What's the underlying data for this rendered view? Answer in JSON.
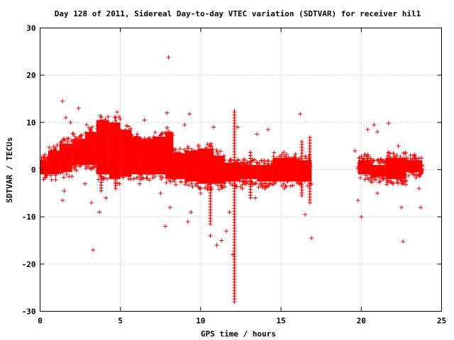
{
  "chart_data": {
    "type": "scatter",
    "title": "Day 128 of 2011, Sidereal Day-to-day VTEC variation (SDTVAR) for receiver hil1",
    "xlabel": "GPS time / hours",
    "ylabel": "SDTVAR / TECUs",
    "xlim": [
      0,
      25
    ],
    "ylim": [
      -30,
      30
    ],
    "xticks": [
      0,
      5,
      10,
      15,
      20,
      25
    ],
    "yticks": [
      -30,
      -20,
      -10,
      0,
      10,
      20,
      30
    ],
    "xtick_labels": [
      "0",
      "5",
      "10",
      "15",
      "20",
      "25"
    ],
    "ytick_labels": [
      "-30",
      "-20",
      "-10",
      "0",
      "10",
      "20",
      "30"
    ],
    "grid": true,
    "marker": "+",
    "color": "#ff0000",
    "series": [
      {
        "name": "SDTVAR",
        "bands": [
          {
            "x_start": 0.0,
            "x_end": 0.5,
            "low": -1.0,
            "high": 2.0
          },
          {
            "x_start": 0.5,
            "x_end": 1.2,
            "low": -1.0,
            "high": 4.0
          },
          {
            "x_start": 1.2,
            "x_end": 2.0,
            "low": -0.5,
            "high": 5.5
          },
          {
            "x_start": 2.0,
            "x_end": 2.8,
            "low": 1.0,
            "high": 6.5
          },
          {
            "x_start": 2.8,
            "x_end": 3.5,
            "low": 1.0,
            "high": 8.0
          },
          {
            "x_start": 3.5,
            "x_end": 4.3,
            "low": -1.0,
            "high": 10.5
          },
          {
            "x_start": 4.3,
            "x_end": 5.0,
            "low": -2.0,
            "high": 10.0
          },
          {
            "x_start": 5.0,
            "x_end": 5.7,
            "low": -1.5,
            "high": 8.5
          },
          {
            "x_start": 5.7,
            "x_end": 6.3,
            "low": -1.0,
            "high": 7.0
          },
          {
            "x_start": 6.3,
            "x_end": 7.0,
            "low": -1.0,
            "high": 6.5
          },
          {
            "x_start": 7.0,
            "x_end": 7.8,
            "low": -1.0,
            "high": 7.0
          },
          {
            "x_start": 7.8,
            "x_end": 8.3,
            "low": -2.0,
            "high": 8.0
          },
          {
            "x_start": 8.3,
            "x_end": 9.0,
            "low": -2.0,
            "high": 3.5
          },
          {
            "x_start": 9.0,
            "x_end": 9.8,
            "low": -2.5,
            "high": 4.0
          },
          {
            "x_start": 9.8,
            "x_end": 10.8,
            "low": -3.0,
            "high": 4.5
          },
          {
            "x_start": 10.8,
            "x_end": 11.5,
            "low": -3.0,
            "high": 3.0
          },
          {
            "x_start": 11.5,
            "x_end": 12.5,
            "low": -2.5,
            "high": 1.5
          },
          {
            "x_start": 12.5,
            "x_end": 13.5,
            "low": -2.0,
            "high": 1.0
          },
          {
            "x_start": 13.5,
            "x_end": 14.5,
            "low": -2.5,
            "high": 1.0
          },
          {
            "x_start": 14.5,
            "x_end": 16.0,
            "low": -2.5,
            "high": 2.5
          },
          {
            "x_start": 16.0,
            "x_end": 16.9,
            "low": -2.5,
            "high": 2.0
          },
          {
            "x_start": 19.8,
            "x_end": 20.6,
            "low": -1.0,
            "high": 2.0
          },
          {
            "x_start": 20.6,
            "x_end": 21.5,
            "low": -1.5,
            "high": 1.0
          },
          {
            "x_start": 21.5,
            "x_end": 22.8,
            "low": -2.0,
            "high": 2.5
          },
          {
            "x_start": 22.8,
            "x_end": 23.8,
            "low": -0.5,
            "high": 2.0
          }
        ],
        "spikes": [
          {
            "x": 12.1,
            "low": -28.0,
            "high": 12.8
          },
          {
            "x": 10.6,
            "low": -11.5,
            "high": 3.0
          },
          {
            "x": 16.8,
            "low": -7.0,
            "high": 7.0
          },
          {
            "x": 13.1,
            "low": -6.0,
            "high": 4.0
          },
          {
            "x": 16.3,
            "low": -5.5,
            "high": 6.0
          },
          {
            "x": 3.8,
            "low": -4.5,
            "high": 11.5
          },
          {
            "x": 4.7,
            "low": -4.0,
            "high": 11.5
          }
        ],
        "outliers": [
          [
            8.0,
            23.8
          ],
          [
            1.4,
            14.5
          ],
          [
            2.4,
            13.0
          ],
          [
            2.9,
            9.5
          ],
          [
            4.8,
            12.2
          ],
          [
            7.9,
            12.0
          ],
          [
            9.3,
            11.8
          ],
          [
            16.2,
            11.8
          ],
          [
            1.6,
            11.0
          ],
          [
            1.9,
            10.0
          ],
          [
            6.5,
            10.5
          ],
          [
            9.0,
            9.5
          ],
          [
            10.8,
            9.0
          ],
          [
            12.3,
            9.0
          ],
          [
            14.2,
            8.5
          ],
          [
            13.5,
            7.5
          ],
          [
            20.8,
            9.5
          ],
          [
            21.7,
            9.8
          ],
          [
            20.4,
            8.5
          ],
          [
            21.0,
            8.0
          ],
          [
            22.3,
            5.0
          ],
          [
            19.6,
            4.0
          ],
          [
            1.5,
            -4.5
          ],
          [
            1.4,
            -6.5
          ],
          [
            2.8,
            -3.0
          ],
          [
            3.2,
            -7.0
          ],
          [
            3.7,
            -9.0
          ],
          [
            3.3,
            -17.0
          ],
          [
            4.1,
            -6.0
          ],
          [
            6.2,
            -3.0
          ],
          [
            7.5,
            -5.0
          ],
          [
            8.1,
            -8.0
          ],
          [
            7.8,
            -12.0
          ],
          [
            9.2,
            -11.0
          ],
          [
            9.4,
            -9.0
          ],
          [
            10.0,
            -5.0
          ],
          [
            10.6,
            -14.0
          ],
          [
            11.0,
            -16.0
          ],
          [
            11.3,
            -15.0
          ],
          [
            11.6,
            -13.0
          ],
          [
            11.8,
            -9.0
          ],
          [
            12.0,
            -18.0
          ],
          [
            12.6,
            -4.0
          ],
          [
            13.4,
            -6.0
          ],
          [
            14.0,
            -4.0
          ],
          [
            15.2,
            -4.0
          ],
          [
            16.5,
            -9.5
          ],
          [
            16.9,
            -14.5
          ],
          [
            19.8,
            -6.5
          ],
          [
            20.0,
            -10.0
          ],
          [
            21.0,
            -5.0
          ],
          [
            22.5,
            -8.0
          ],
          [
            22.6,
            -15.2
          ],
          [
            23.7,
            -8.0
          ],
          [
            23.6,
            -4.0
          ],
          [
            0.3,
            -0.5
          ],
          [
            0.1,
            1.5
          ]
        ]
      }
    ]
  }
}
